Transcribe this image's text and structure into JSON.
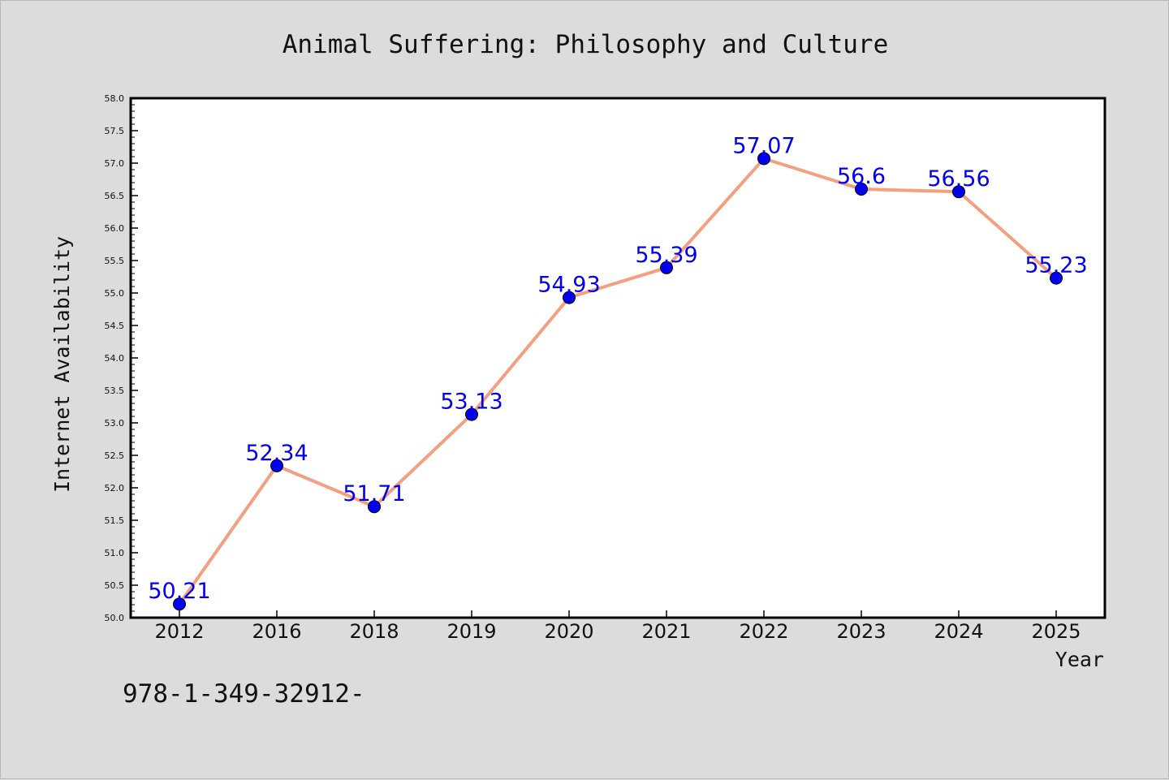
{
  "chart_data": {
    "type": "line",
    "title": "Animal Suffering: Philosophy and Culture",
    "xlabel": "Year",
    "ylabel": "Internet Availability",
    "categories": [
      "2012",
      "2016",
      "2018",
      "2019",
      "2020",
      "2021",
      "2022",
      "2023",
      "2024",
      "2025"
    ],
    "series": [
      {
        "values": [
          50.21,
          52.34,
          51.71,
          53.13,
          54.93,
          55.39,
          57.07,
          56.6,
          56.56,
          55.23
        ],
        "data_labels": [
          "50.21",
          "52.34",
          "51.71",
          "53.13",
          "54.93",
          "55.39",
          "57.07",
          "56.6",
          "56.56",
          "55.23"
        ]
      }
    ],
    "ylim": [
      50.0,
      58.0
    ],
    "yticks": [
      "50.0",
      "50.5",
      "51.0",
      "51.5",
      "52.0",
      "52.5",
      "53.0",
      "53.5",
      "54.0",
      "54.5",
      "55.0",
      "55.5",
      "56.0",
      "56.5",
      "57.0",
      "57.5",
      "58.0"
    ],
    "grid": false,
    "legend": "none",
    "colors": {
      "line": "#f4a080",
      "marker": "#0000ee",
      "data_label": "#0000ee",
      "plot_background": "#ffffff",
      "figure_background": "#dcdcdc"
    }
  },
  "footer": {
    "text": "978-1-349-32912-"
  }
}
